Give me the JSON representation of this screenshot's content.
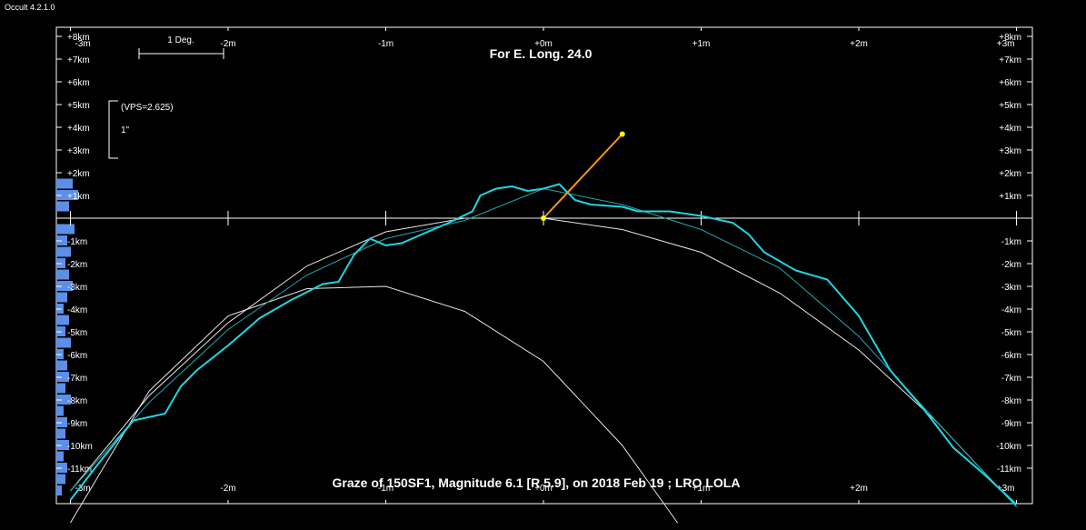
{
  "app_title": "Occult 4.2.1.0",
  "chart_data": {
    "type": "line",
    "title": "For E. Long. 24.0",
    "caption": "Graze of  150SF1,  Magnitude 6.1 [R 5.9],  on 2018 Feb 19  ;  LRO LOLA",
    "scale_bar_label": "1 Deg.",
    "vps_label": "(VPS=2.625)",
    "arcsec_label": "1\"",
    "x_tick_labels": [
      "-3m",
      "-2m",
      "-1m",
      "+0m",
      "+1m",
      "+2m",
      "+3m"
    ],
    "x_tick_values": [
      -3,
      -2,
      -1,
      0,
      1,
      2,
      3
    ],
    "y_tick_labels": [
      "+8km",
      "+7km",
      "+6km",
      "+5km",
      "+4km",
      "+3km",
      "+2km",
      "+1km",
      "-1km",
      "-2km",
      "-3km",
      "-4km",
      "-5km",
      "-6km",
      "-7km",
      "-8km",
      "-9km",
      "-10km",
      "-11km"
    ],
    "y_tick_values": [
      8,
      7,
      6,
      5,
      4,
      3,
      2,
      1,
      -1,
      -2,
      -3,
      -4,
      -5,
      -6,
      -7,
      -8,
      -9,
      -10,
      -11
    ],
    "xlim": [
      -3,
      3
    ],
    "ylim": [
      -12.5,
      8
    ],
    "limb_profile": {
      "x": [
        -3.0,
        -2.8,
        -2.6,
        -2.4,
        -2.3,
        -2.2,
        -2.0,
        -1.9,
        -1.8,
        -1.6,
        -1.4,
        -1.3,
        -1.2,
        -1.1,
        -1.0,
        -0.9,
        -0.8,
        -0.6,
        -0.45,
        -0.4,
        -0.3,
        -0.2,
        -0.1,
        0.0,
        0.1,
        0.2,
        0.3,
        0.5,
        0.6,
        0.8,
        1.0,
        1.2,
        1.3,
        1.4,
        1.6,
        1.8,
        2.0,
        2.1,
        2.2,
        2.4,
        2.6,
        2.8,
        3.0
      ],
      "y": [
        -12.4,
        -10.6,
        -8.9,
        -8.6,
        -7.4,
        -6.7,
        -5.6,
        -5.0,
        -4.4,
        -3.6,
        -2.9,
        -2.8,
        -1.6,
        -0.9,
        -1.2,
        -1.1,
        -0.8,
        -0.2,
        0.3,
        1.0,
        1.3,
        1.4,
        1.2,
        1.3,
        1.5,
        0.8,
        0.6,
        0.5,
        0.3,
        0.3,
        0.1,
        -0.2,
        -0.7,
        -1.5,
        -2.3,
        -2.7,
        -4.3,
        -5.5,
        -6.7,
        -8.3,
        -10.1,
        -11.3,
        -12.6
      ]
    },
    "mean_limb": {
      "x": [
        -3.0,
        -2.5,
        -2.0,
        -1.5,
        -1.0,
        -0.5,
        0.0,
        0.5,
        1.0,
        1.5,
        2.0,
        2.5,
        3.0
      ],
      "y": [
        -12.0,
        -8.1,
        -4.9,
        -2.5,
        -0.9,
        -0.1,
        1.3,
        0.6,
        -0.5,
        -2.2,
        -5.2,
        -9.0,
        -12.7
      ]
    },
    "reference_arc": {
      "x": [
        -3.0,
        -2.5,
        -2.0,
        -1.5,
        -1.0,
        -0.5,
        0.0,
        0.5,
        1.0,
        1.5,
        2.0,
        2.5,
        3.0
      ],
      "y": [
        -12.0,
        -7.8,
        -4.6,
        -2.1,
        -0.6,
        0.0,
        0.0,
        -0.5,
        -1.5,
        -3.3,
        -5.8,
        -9.0,
        -12.7
      ]
    },
    "lower_arc": {
      "x": [
        -3.0,
        -2.5,
        -2.0,
        -1.5,
        -1.0,
        -0.5,
        0.0,
        0.5,
        0.85
      ],
      "y": [
        -13.4,
        -7.6,
        -4.3,
        -3.1,
        -3.0,
        -4.1,
        -6.3,
        -10.0,
        -13.4
      ]
    },
    "vector": {
      "from": [
        0,
        0
      ],
      "to": [
        0.5,
        3.7
      ]
    },
    "histogram": {
      "y": [
        1.5,
        1.0,
        0.5,
        -0.5,
        -1.0,
        -1.5,
        -2.0,
        -2.5,
        -3.0,
        -3.5,
        -4.0,
        -4.5,
        -5.0,
        -5.5,
        -6.0,
        -6.5,
        -7.0,
        -7.5,
        -8.0,
        -8.5,
        -9.0,
        -9.5,
        -10.0,
        -10.5,
        -11.0,
        -11.5,
        -12.0
      ],
      "widths": [
        18,
        24,
        14,
        20,
        12,
        16,
        10,
        14,
        18,
        12,
        8,
        14,
        10,
        16,
        8,
        12,
        14,
        10,
        16,
        8,
        12,
        10,
        14,
        8,
        12,
        10,
        6
      ]
    },
    "colors": {
      "profile": "#22d4e0",
      "mean_limb": "#1fa8b0",
      "arc": "#e6e6e6",
      "vector": "#ff9900",
      "point": "#ffff00",
      "histogram": "#5b8fe8",
      "frame": "#ffffff"
    }
  }
}
